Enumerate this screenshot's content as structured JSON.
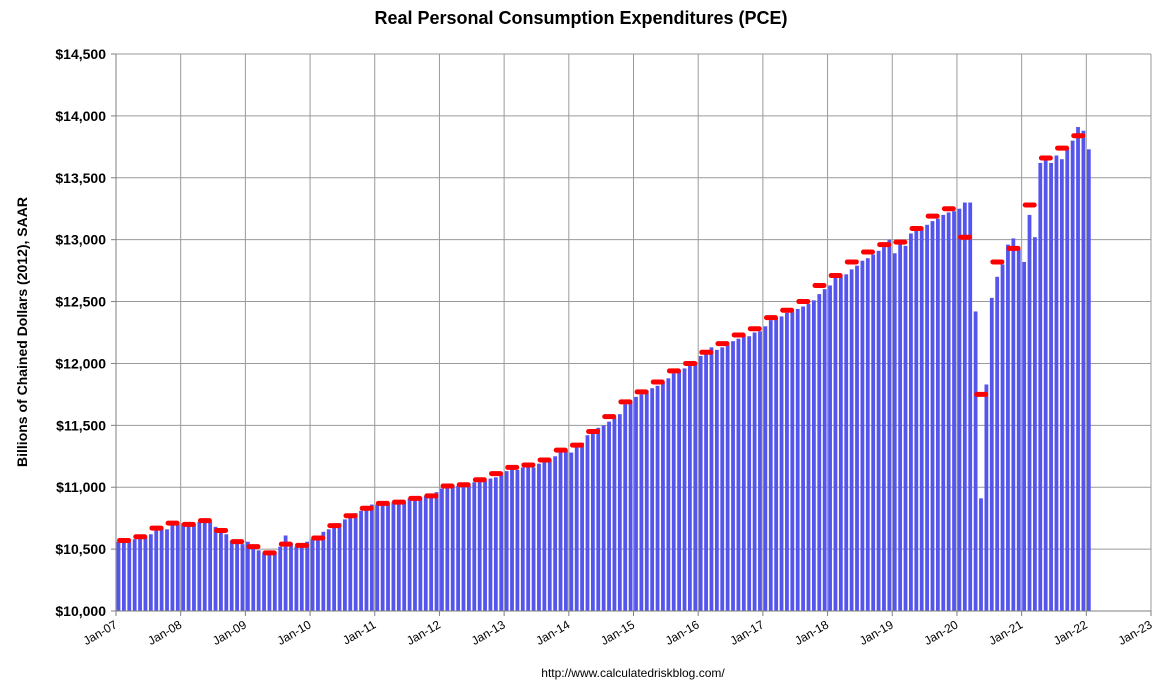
{
  "chart_data": {
    "type": "bar",
    "title": "Real Personal Consumption Expenditures (PCE)",
    "ylabel": "Billions of Chained Dollars (2012), SAAR",
    "xlabel": "",
    "ylim": [
      10000,
      14500
    ],
    "xlim_months": [
      "2007-01",
      "2023-01"
    ],
    "yticks": [
      10000,
      10500,
      11000,
      11500,
      12000,
      12500,
      13000,
      13500,
      14000,
      14500
    ],
    "ytick_labels": [
      "$10,000",
      "$10,500",
      "$11,000",
      "$11,500",
      "$12,000",
      "$12,500",
      "$13,000",
      "$13,500",
      "$14,000",
      "$14,500"
    ],
    "xtick_labels": [
      "Jan-07",
      "Jan-08",
      "Jan-09",
      "Jan-10",
      "Jan-11",
      "Jan-12",
      "Jan-13",
      "Jan-14",
      "Jan-15",
      "Jan-16",
      "Jan-17",
      "Jan-18",
      "Jan-19",
      "Jan-20",
      "Jan-21",
      "Jan-22",
      "Jan-23"
    ],
    "grid": true,
    "legend": "none",
    "bar_color": "#5555ee",
    "marker_color": "#ff0000",
    "series": [
      {
        "kind": "monthly_bars",
        "start": "2007-01",
        "values": [
          10560,
          10570,
          10560,
          10580,
          10600,
          10590,
          10620,
          10650,
          10680,
          10660,
          10710,
          10700,
          10710,
          10690,
          10700,
          10720,
          10740,
          10720,
          10680,
          10640,
          10620,
          10570,
          10560,
          10540,
          10560,
          10510,
          10490,
          10470,
          10460,
          10480,
          10520,
          10610,
          10550,
          10520,
          10530,
          10560,
          10580,
          10600,
          10640,
          10660,
          10700,
          10710,
          10740,
          10770,
          10790,
          10810,
          10830,
          10860,
          10860,
          10870,
          10870,
          10880,
          10880,
          10880,
          10910,
          10910,
          10920,
          10930,
          10930,
          10960,
          10990,
          11010,
          11020,
          11010,
          11020,
          11010,
          11040,
          11060,
          11050,
          11070,
          11080,
          11100,
          11130,
          11150,
          11140,
          11160,
          11170,
          11160,
          11190,
          11210,
          11220,
          11250,
          11290,
          11300,
          11280,
          11330,
          11360,
          11420,
          11440,
          11480,
          11500,
          11530,
          11560,
          11590,
          11670,
          11700,
          11730,
          11750,
          11780,
          11800,
          11820,
          11850,
          11880,
          11920,
          11940,
          11960,
          11990,
          12010,
          12060,
          12100,
          12130,
          12110,
          12130,
          12150,
          12180,
          12200,
          12230,
          12220,
          12250,
          12260,
          12300,
          12350,
          12370,
          12380,
          12410,
          12420,
          12440,
          12460,
          12480,
          12510,
          12560,
          12600,
          12630,
          12710,
          12700,
          12720,
          12760,
          12790,
          12830,
          12850,
          12880,
          12910,
          12940,
          13000,
          12890,
          12980,
          12950,
          13050,
          13070,
          13100,
          13120,
          13150,
          13170,
          13200,
          13220,
          13230,
          13250,
          13300,
          13300,
          12420,
          10910,
          11830,
          12530,
          12700,
          12800,
          12960,
          13010,
          12920,
          12820,
          13200,
          13020,
          13620,
          13680,
          13620,
          13680,
          13650,
          13740,
          13800,
          13910,
          13880,
          13730
        ]
      },
      {
        "kind": "quarterly_markers",
        "start_quarter": "2007-Q1",
        "values": [
          10570,
          10600,
          10670,
          10710,
          10700,
          10730,
          10650,
          10560,
          10520,
          10470,
          10540,
          10530,
          10590,
          10690,
          10770,
          10830,
          10870,
          10880,
          10910,
          10930,
          11010,
          11020,
          11060,
          11110,
          11160,
          11180,
          11220,
          11300,
          11340,
          11450,
          11570,
          11690,
          11770,
          11850,
          11940,
          12000,
          12090,
          12160,
          12230,
          12280,
          12370,
          12430,
          12500,
          12630,
          12710,
          12820,
          12900,
          12960,
          12980,
          13090,
          13190,
          13250,
          13020,
          11750,
          12820,
          12930,
          13280,
          13660,
          13740,
          13840
        ]
      }
    ]
  },
  "footer": {
    "source": "http://www.calculatedriskblog.com/"
  }
}
